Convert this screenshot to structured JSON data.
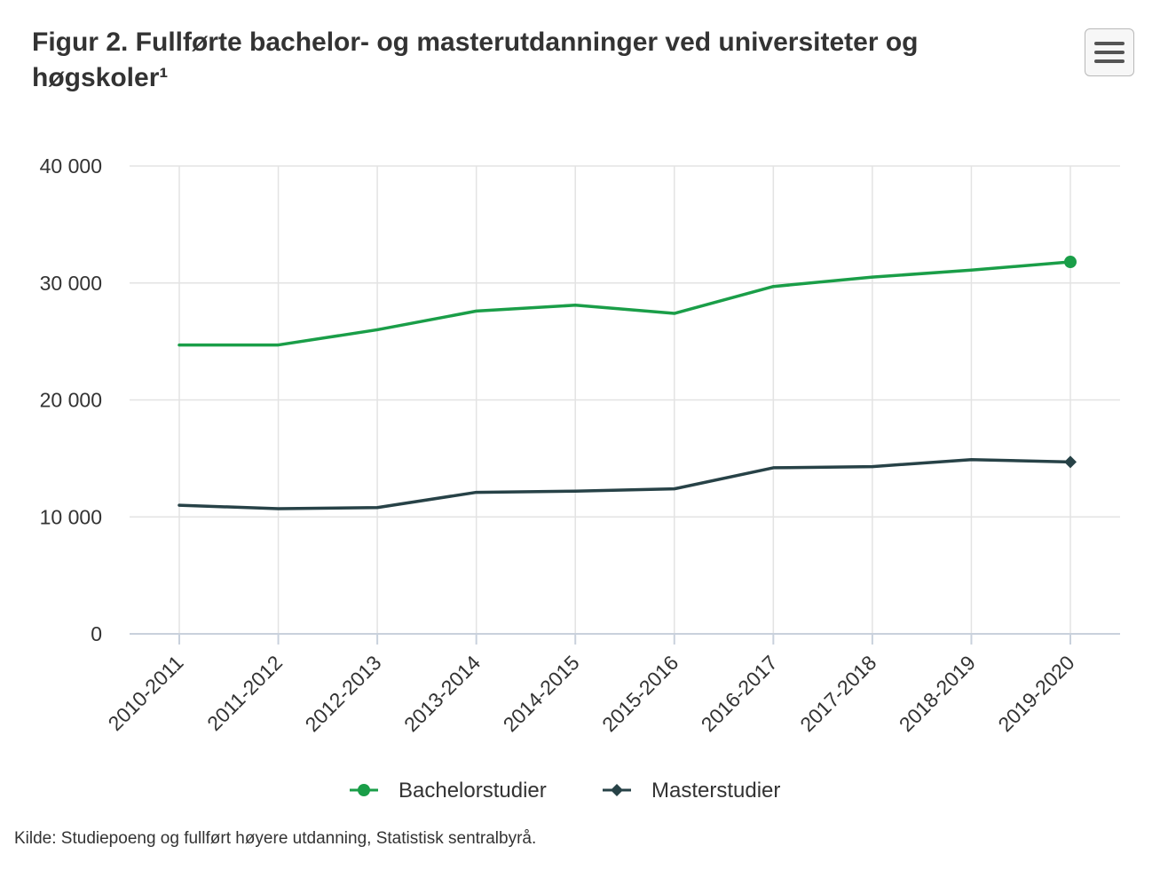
{
  "header": {
    "title": "Figur 2. Fullførte bachelor- og masterutdanninger ved universiteter og høgskoler¹",
    "menu_icon": "hamburger-menu-icon"
  },
  "chart_data": {
    "type": "line",
    "title": "Figur 2. Fullførte bachelor- og masterutdanninger ved universiteter og høgskoler¹",
    "xlabel": "",
    "ylabel": "",
    "categories": [
      "2010-2011",
      "2011-2012",
      "2012-2013",
      "2013-2014",
      "2014-2015",
      "2015-2016",
      "2016-2017",
      "2017-2018",
      "2018-2019",
      "2019-2020"
    ],
    "y_ticks": [
      0,
      10000,
      20000,
      30000,
      40000
    ],
    "y_tick_labels": [
      "0",
      "10 000",
      "20 000",
      "30 000",
      "40 000"
    ],
    "ylim": [
      0,
      40000
    ],
    "grid": true,
    "legend_position": "bottom-center",
    "series": [
      {
        "name": "Bachelorstudier",
        "color": "#1a9e48",
        "marker": "circle",
        "values": [
          24700,
          24700,
          26000,
          27600,
          28100,
          27400,
          29700,
          30500,
          31100,
          31800
        ]
      },
      {
        "name": "Masterstudier",
        "color": "#274247",
        "marker": "diamond",
        "values": [
          11000,
          10700,
          10800,
          12100,
          12200,
          12400,
          14200,
          14300,
          14900,
          14700
        ]
      }
    ]
  },
  "source": "Kilde: Studiepoeng og fullført høyere utdanning, Statistisk sentralbyrå."
}
